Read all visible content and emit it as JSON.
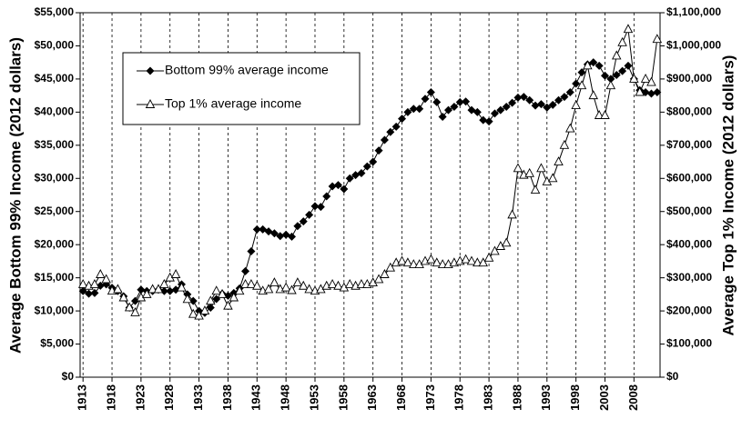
{
  "chart_data": {
    "type": "line",
    "y_label": "Average Bottom 99% Income (2012 dollars)",
    "y2_label": "Average Top 1% Income (2012 dollars)",
    "x": [
      1913,
      1914,
      1915,
      1916,
      1917,
      1918,
      1919,
      1920,
      1921,
      1922,
      1923,
      1924,
      1925,
      1926,
      1927,
      1928,
      1929,
      1930,
      1931,
      1932,
      1933,
      1934,
      1935,
      1936,
      1937,
      1938,
      1939,
      1940,
      1941,
      1942,
      1943,
      1944,
      1945,
      1946,
      1947,
      1948,
      1949,
      1950,
      1951,
      1952,
      1953,
      1954,
      1955,
      1956,
      1957,
      1958,
      1959,
      1960,
      1961,
      1962,
      1963,
      1964,
      1965,
      1966,
      1967,
      1968,
      1969,
      1970,
      1971,
      1972,
      1973,
      1974,
      1975,
      1976,
      1977,
      1978,
      1979,
      1980,
      1981,
      1982,
      1983,
      1984,
      1985,
      1986,
      1987,
      1988,
      1989,
      1990,
      1991,
      1992,
      1993,
      1994,
      1995,
      1996,
      1997,
      1998,
      1999,
      2000,
      2001,
      2002,
      2003,
      2004,
      2005,
      2006,
      2007,
      2008,
      2009,
      2010,
      2011,
      2012
    ],
    "xlim": [
      1912.5,
      2012.5
    ],
    "xticks": [
      1913,
      1918,
      1923,
      1928,
      1933,
      1938,
      1943,
      1948,
      1953,
      1958,
      1963,
      1968,
      1973,
      1978,
      1983,
      1988,
      1993,
      1998,
      2003,
      2008
    ],
    "grid": "x",
    "ylim": [
      0,
      55000
    ],
    "yticks": [
      {
        "value": 0,
        "label": "$0"
      },
      {
        "value": 5000,
        "label": "$5,000"
      },
      {
        "value": 10000,
        "label": "$10,000"
      },
      {
        "value": 15000,
        "label": "$15,000"
      },
      {
        "value": 20000,
        "label": "$20,000"
      },
      {
        "value": 25000,
        "label": "$25,000"
      },
      {
        "value": 30000,
        "label": "$30,000"
      },
      {
        "value": 35000,
        "label": "$35,000"
      },
      {
        "value": 40000,
        "label": "$40,000"
      },
      {
        "value": 45000,
        "label": "$45,000"
      },
      {
        "value": 50000,
        "label": "$50,000"
      },
      {
        "value": 55000,
        "label": "$55,000"
      }
    ],
    "y2lim": [
      0,
      1100000
    ],
    "y2ticks": [
      {
        "value": 0,
        "label": "$0"
      },
      {
        "value": 100000,
        "label": "$100,000"
      },
      {
        "value": 200000,
        "label": "$200,000"
      },
      {
        "value": 300000,
        "label": "$300,000"
      },
      {
        "value": 400000,
        "label": "$400,000"
      },
      {
        "value": 500000,
        "label": "$500,000"
      },
      {
        "value": 600000,
        "label": "$600,000"
      },
      {
        "value": 700000,
        "label": "$700,000"
      },
      {
        "value": 800000,
        "label": "$800,000"
      },
      {
        "value": 900000,
        "label": "$900,000"
      },
      {
        "value": 1000000,
        "label": "$1,000,000"
      },
      {
        "value": 1100000,
        "label": "$1,100,000"
      }
    ],
    "series": [
      {
        "name": "Bottom 99% average income",
        "color": "#000000",
        "marker": "diamond",
        "values": [
          13000,
          12600,
          12700,
          13800,
          14000,
          13500,
          13000,
          12200,
          10500,
          11500,
          13200,
          13000,
          13000,
          13200,
          13000,
          13000,
          13200,
          14000,
          12500,
          11500,
          10000,
          9700,
          10500,
          11800,
          12600,
          12300,
          12700,
          13400,
          16000,
          19000,
          22300,
          22300,
          22000,
          21700,
          21300,
          21500,
          21200,
          22800,
          23500,
          24500,
          25800,
          25700,
          27300,
          28800,
          29000,
          28400,
          30000,
          30500,
          30800,
          31800,
          32500,
          34200,
          35800,
          37000,
          37800,
          39000,
          40000,
          40500,
          40500,
          42000,
          43000,
          41500,
          39300,
          40300,
          40800,
          41500,
          41600,
          40300,
          40000,
          38800,
          38600,
          39800,
          40300,
          40800,
          41400,
          42200,
          42300,
          41800,
          41000,
          41200,
          40700,
          41100,
          41800,
          42300,
          43000,
          44300,
          46000,
          47200,
          47500,
          47000,
          45500,
          45000,
          45600,
          46200,
          47000,
          45000,
          43300,
          43000,
          42800,
          43000
        ]
      },
      {
        "name": "Top 1% average income",
        "color": "#000000",
        "marker": "triangle",
        "axis": "y2",
        "values": [
          280000,
          275000,
          280000,
          310000,
          295000,
          260000,
          265000,
          240000,
          210000,
          195000,
          240000,
          250000,
          265000,
          265000,
          280000,
          300000,
          310000,
          270000,
          235000,
          190000,
          185000,
          200000,
          230000,
          260000,
          250000,
          215000,
          240000,
          260000,
          280000,
          280000,
          275000,
          260000,
          265000,
          285000,
          265000,
          270000,
          262000,
          285000,
          275000,
          265000,
          260000,
          265000,
          275000,
          280000,
          275000,
          270000,
          280000,
          275000,
          280000,
          280000,
          285000,
          295000,
          310000,
          330000,
          345000,
          350000,
          345000,
          340000,
          340000,
          350000,
          355000,
          345000,
          340000,
          340000,
          345000,
          350000,
          355000,
          350000,
          345000,
          345000,
          360000,
          380000,
          395000,
          405000,
          490000,
          630000,
          610000,
          615000,
          565000,
          630000,
          590000,
          600000,
          650000,
          700000,
          750000,
          820000,
          880000,
          940000,
          850000,
          790000,
          790000,
          880000,
          970000,
          1010000,
          1050000,
          900000,
          860000,
          900000,
          890000,
          1020000
        ]
      }
    ]
  }
}
